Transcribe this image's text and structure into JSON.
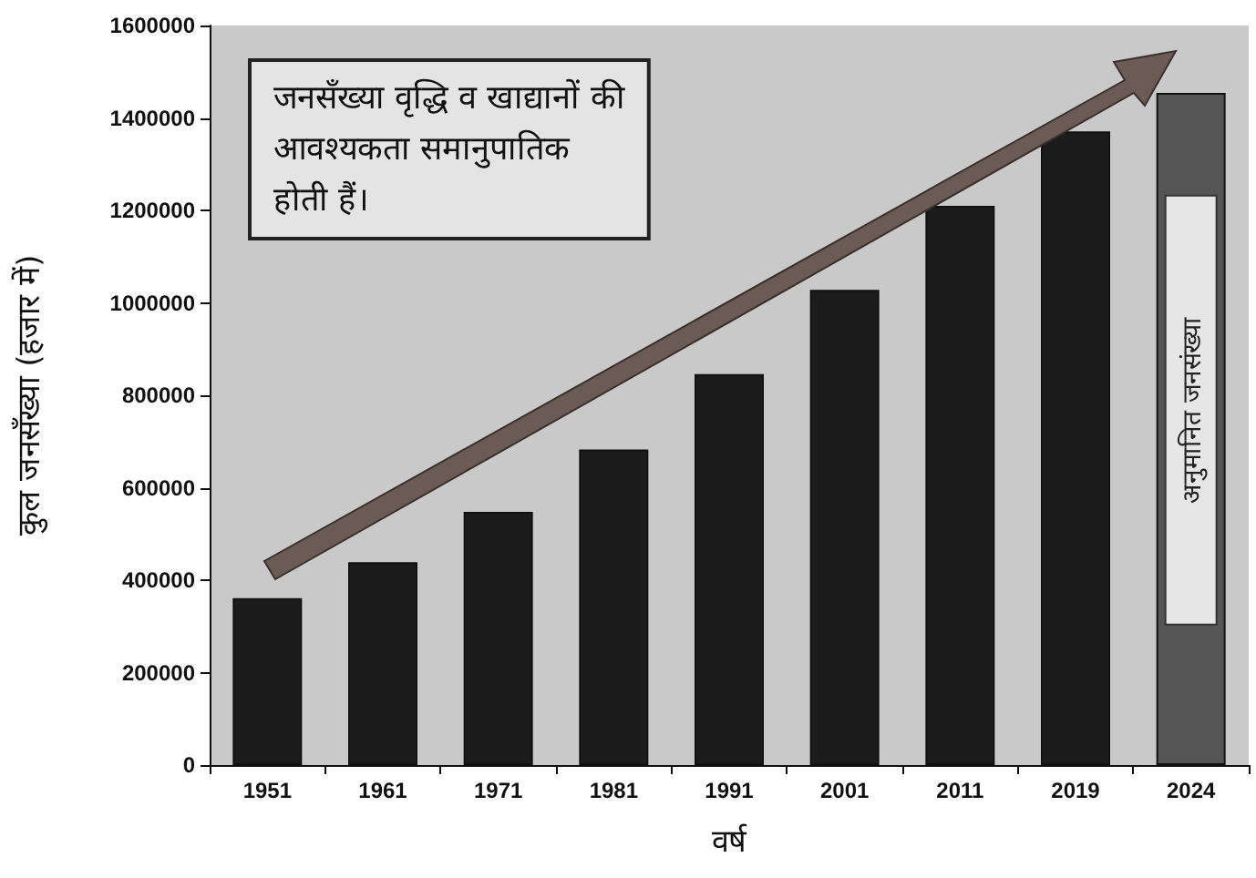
{
  "chart_data": {
    "type": "bar",
    "xlabel": "वर्ष",
    "ylabel": "कुल जनसँख्या (हजार में)",
    "categories": [
      "1951",
      "1961",
      "1971",
      "1981",
      "1991",
      "2001",
      "2011",
      "2019",
      "2024"
    ],
    "values": [
      361000,
      439000,
      548000,
      683000,
      846000,
      1028000,
      1210000,
      1371000,
      1454000
    ],
    "colors": [
      "#1c1c1c",
      "#1c1c1c",
      "#1c1c1c",
      "#1c1c1c",
      "#1c1c1c",
      "#1c1c1c",
      "#1c1c1c",
      "#1c1c1c",
      "#555555"
    ],
    "ylim": [
      0,
      1600000
    ],
    "yticks": [
      0,
      200000,
      400000,
      600000,
      800000,
      1000000,
      1200000,
      1400000,
      1600000
    ],
    "grid": false,
    "annotations": [
      "जनसँख्या वृद्धि व खाद्यानों की\nआवश्यकता समानुपातिक\nहोती हैं।",
      "अनुमानित जनसंख्या"
    ]
  }
}
